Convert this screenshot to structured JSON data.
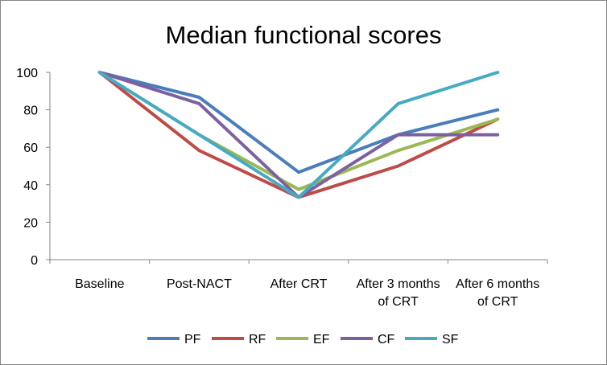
{
  "chart_data": {
    "type": "line",
    "title": "Median functional scores",
    "xlabel": "",
    "ylabel": "",
    "categories": [
      "Baseline",
      "Post-NACT",
      "After CRT",
      "After 3 months of CRT",
      "After 6 months of CRT"
    ],
    "category_lines": [
      [
        "Baseline"
      ],
      [
        "Post-NACT"
      ],
      [
        "After CRT"
      ],
      [
        "After 3 months",
        "of CRT"
      ],
      [
        "After 6 months",
        "of CRT"
      ]
    ],
    "ylim": [
      0,
      100
    ],
    "yticks": [
      0,
      20,
      40,
      60,
      80,
      100
    ],
    "grid": false,
    "legend_position": "bottom",
    "series": [
      {
        "name": "PF",
        "color": "#4a7ebb",
        "values": [
          100,
          86.7,
          46.7,
          66.7,
          80
        ]
      },
      {
        "name": "RF",
        "color": "#be4b48",
        "values": [
          100,
          58.3,
          33.3,
          50,
          75
        ]
      },
      {
        "name": "EF",
        "color": "#98b954",
        "values": [
          100,
          66.7,
          37.5,
          58.3,
          75
        ]
      },
      {
        "name": "CF",
        "color": "#7d60a0",
        "values": [
          100,
          83.3,
          33.3,
          66.7,
          66.7
        ]
      },
      {
        "name": "SF",
        "color": "#46aac5",
        "values": [
          100,
          66.7,
          33.3,
          83.3,
          100
        ]
      }
    ]
  }
}
